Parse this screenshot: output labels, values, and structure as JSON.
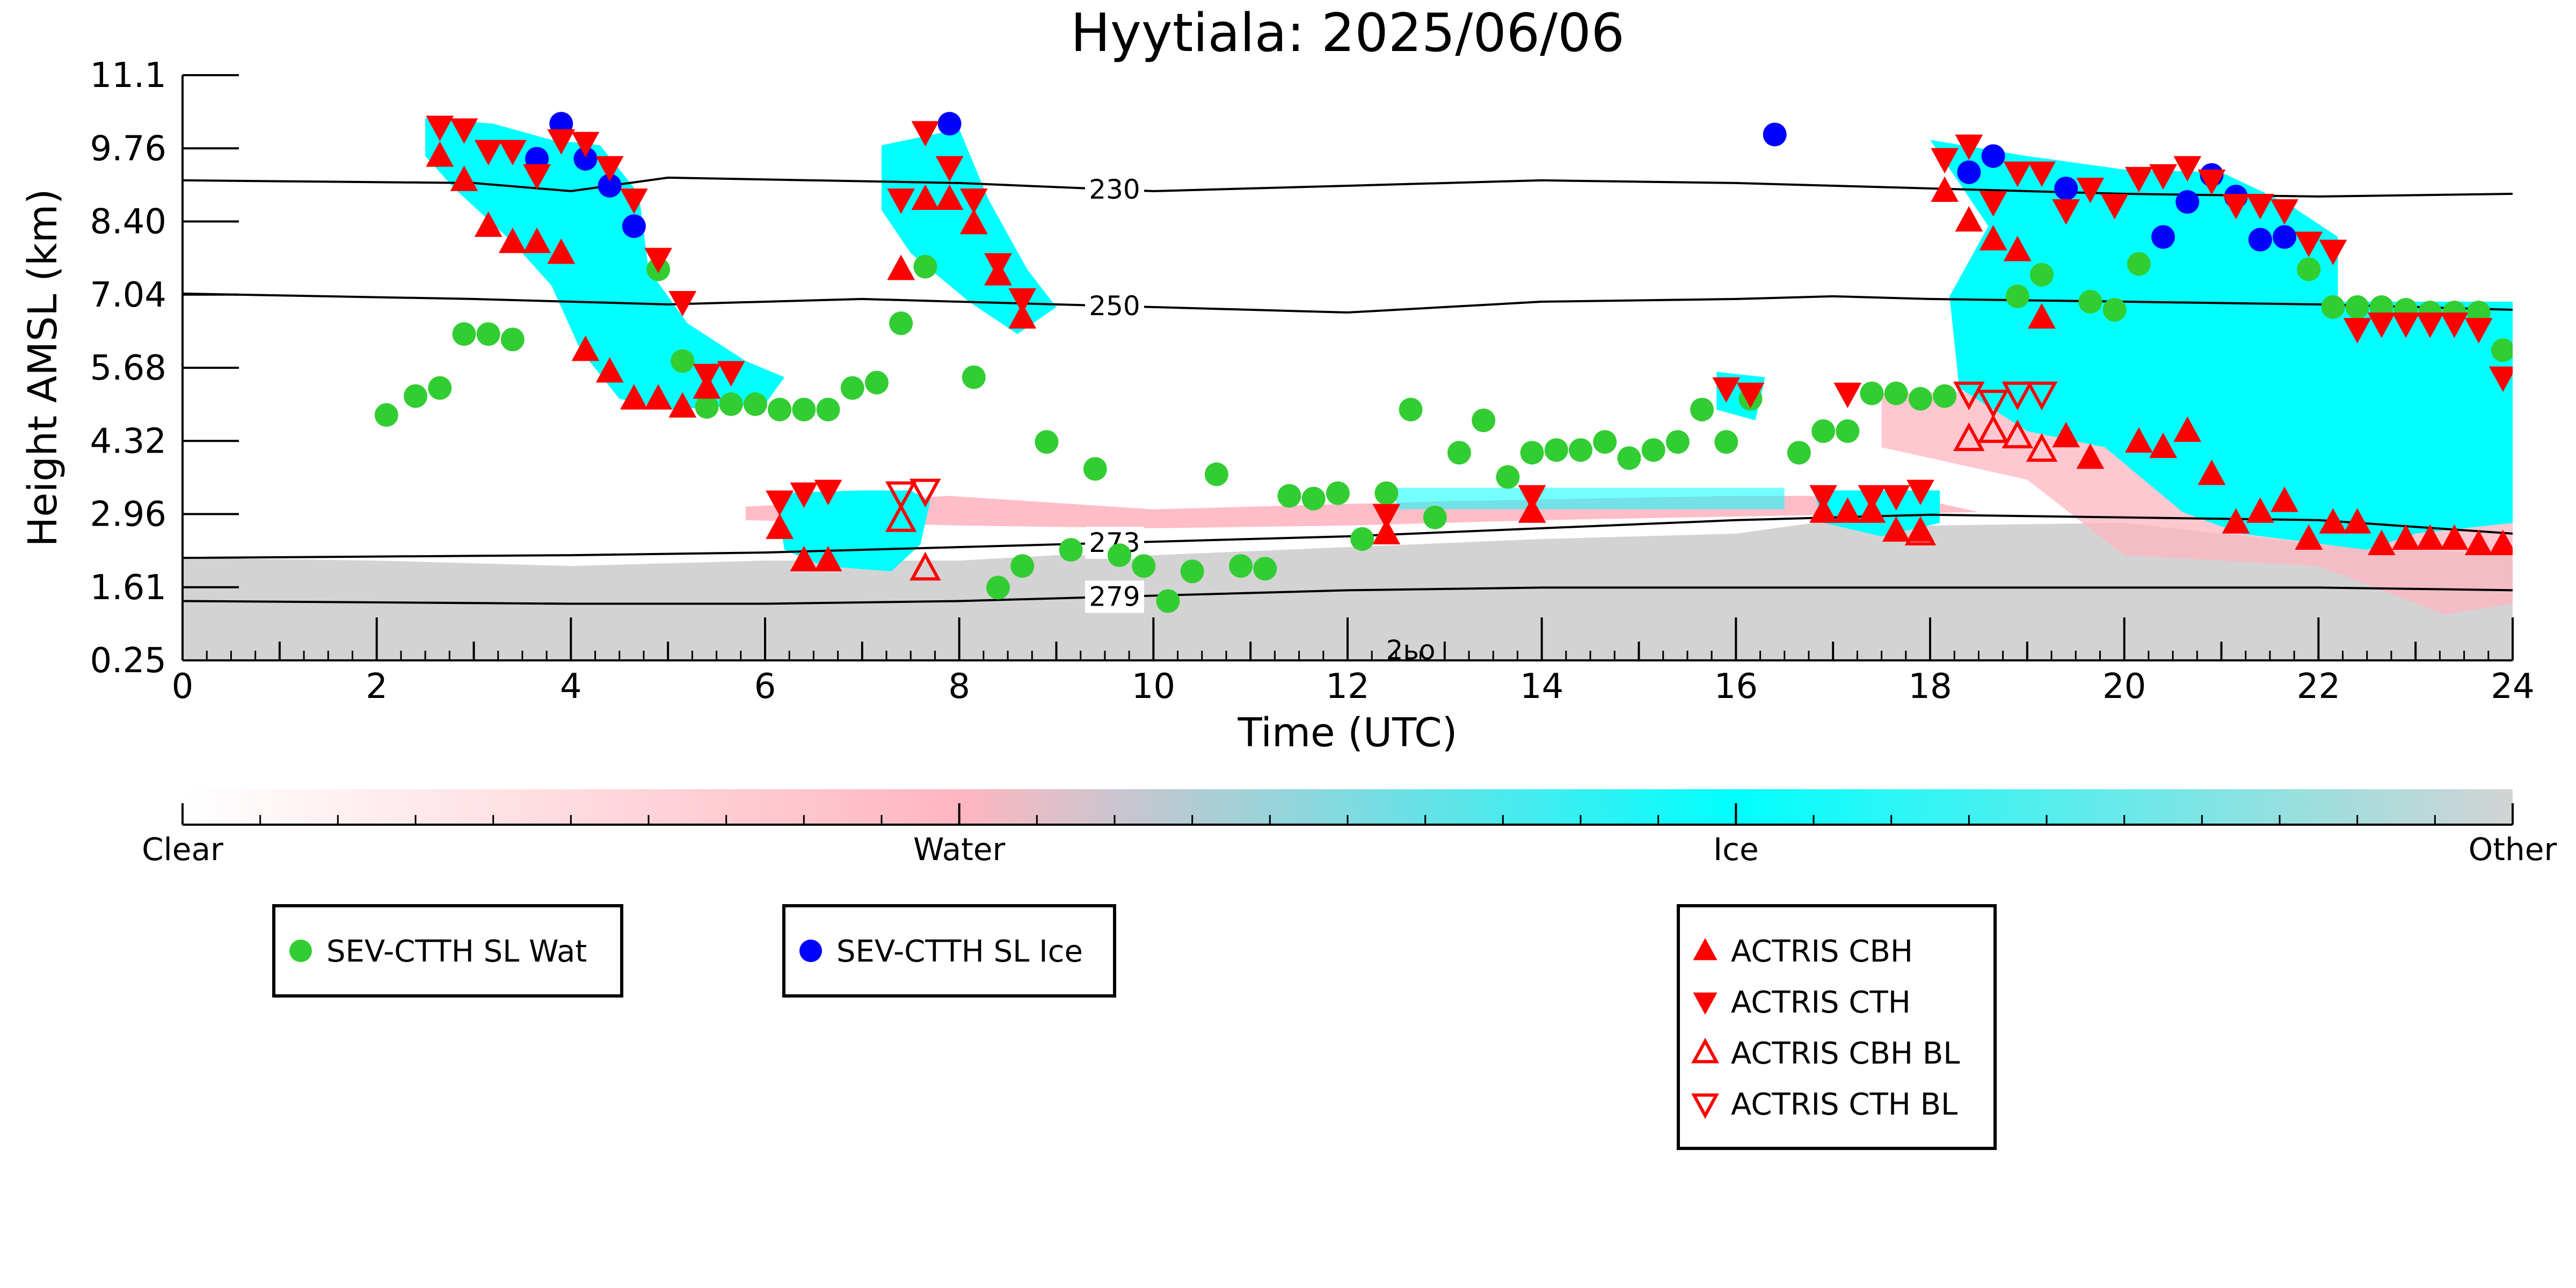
{
  "chart_data": {
    "type": "scatter",
    "title": "Hyytiala: 2025/06/06",
    "xlabel": "Time (UTC)",
    "ylabel": "Height AMSL (km)",
    "xlim": [
      0,
      24
    ],
    "ylim": [
      0.25,
      11.1
    ],
    "x_ticks": [
      "0",
      "2",
      "4",
      "6",
      "8",
      "10",
      "12",
      "14",
      "16",
      "18",
      "20",
      "22",
      "24"
    ],
    "y_ticks": [
      "0.25",
      "1.61",
      "2.96",
      "4.32",
      "5.68",
      "7.04",
      "8.40",
      "9.76",
      "11.1"
    ],
    "colorbar": {
      "labels": [
        "Clear",
        "Water",
        "Ice",
        "Other"
      ],
      "colors": [
        "#ffffff",
        "#ffb6c1",
        "#00ffff",
        "#d3d3d3"
      ]
    },
    "contours": [
      {
        "label": "230",
        "label_x": 9.6,
        "x": [
          0,
          3,
          4,
          5,
          8,
          10,
          12,
          14,
          16,
          18,
          20,
          22,
          24
        ],
        "y": [
          9.15,
          9.1,
          8.95,
          9.2,
          9.1,
          8.95,
          9.05,
          9.15,
          9.1,
          9.0,
          8.9,
          8.85,
          8.9
        ]
      },
      {
        "label": "250",
        "label_x": 9.6,
        "x": [
          0,
          3,
          5,
          7,
          8,
          10,
          12,
          14,
          16,
          17,
          18,
          20,
          22,
          24
        ],
        "y": [
          7.05,
          6.95,
          6.85,
          6.95,
          6.9,
          6.8,
          6.7,
          6.9,
          6.95,
          7.0,
          6.95,
          6.9,
          6.85,
          6.75
        ]
      },
      {
        "label": "273",
        "label_x": 9.6,
        "x": [
          0,
          4,
          6,
          8,
          10,
          12,
          14,
          16,
          17,
          18,
          20,
          22,
          24
        ],
        "y": [
          2.15,
          2.2,
          2.25,
          2.35,
          2.45,
          2.55,
          2.7,
          2.85,
          2.9,
          2.95,
          2.9,
          2.85,
          2.6
        ]
      },
      {
        "label": "279",
        "label_x": 9.6,
        "x": [
          0,
          4,
          6,
          8,
          10,
          12,
          14,
          16,
          18,
          20,
          22,
          24
        ],
        "y": [
          1.35,
          1.3,
          1.3,
          1.35,
          1.45,
          1.55,
          1.6,
          1.6,
          1.6,
          1.6,
          1.6,
          1.55
        ]
      }
    ],
    "contour_partial_label": "2ьо",
    "series": [
      {
        "name": "SEV-CTTH SL Wat",
        "marker": "circle",
        "color": "#32cd32",
        "x": [
          2.1,
          2.4,
          2.65,
          2.9,
          3.15,
          3.4,
          4.9,
          5.15,
          5.4,
          5.65,
          5.9,
          6.15,
          6.4,
          6.65,
          6.9,
          7.15,
          7.4,
          7.65,
          8.15,
          8.4,
          8.65,
          8.9,
          9.15,
          9.4,
          9.65,
          9.9,
          10.15,
          10.4,
          10.65,
          10.9,
          11.15,
          11.4,
          11.65,
          11.9,
          12.15,
          12.4,
          12.65,
          12.9,
          13.15,
          13.4,
          13.65,
          13.9,
          14.15,
          14.4,
          14.65,
          14.9,
          15.15,
          15.4,
          15.65,
          15.9,
          16.15,
          16.65,
          16.9,
          17.15,
          17.4,
          17.65,
          17.9,
          18.15,
          18.9,
          19.15,
          19.65,
          19.9,
          20.15,
          21.9,
          22.15,
          22.4,
          22.65,
          22.9,
          23.15,
          23.4,
          23.65,
          23.9
        ],
        "y": [
          4.8,
          5.15,
          5.3,
          6.3,
          6.3,
          6.2,
          7.5,
          5.8,
          4.95,
          5.0,
          5.0,
          4.9,
          4.9,
          4.9,
          5.3,
          5.4,
          6.5,
          7.55,
          5.5,
          1.6,
          2.0,
          4.3,
          2.3,
          3.8,
          2.2,
          2.0,
          1.35,
          1.9,
          3.7,
          2.0,
          1.95,
          3.3,
          3.25,
          3.35,
          2.5,
          3.35,
          4.9,
          2.9,
          4.1,
          4.7,
          3.65,
          4.1,
          4.15,
          4.15,
          4.3,
          4.0,
          4.15,
          4.3,
          4.9,
          4.3,
          5.1,
          4.1,
          4.5,
          4.5,
          5.2,
          5.2,
          5.1,
          5.15,
          7.0,
          7.4,
          6.9,
          6.75,
          7.6,
          7.5,
          6.8,
          6.8,
          6.8,
          6.75,
          6.7,
          6.7,
          6.7,
          6.0
        ]
      },
      {
        "name": "SEV-CTTH SL Ice",
        "marker": "circle",
        "color": "#0000ff",
        "x": [
          3.65,
          3.9,
          4.15,
          4.4,
          4.65,
          7.9,
          16.4,
          18.4,
          18.65,
          19.4,
          20.4,
          20.65,
          20.9,
          21.15,
          21.4,
          21.65
        ],
        "y": [
          9.55,
          10.2,
          9.55,
          9.05,
          8.3,
          10.2,
          10.0,
          9.3,
          9.6,
          9.0,
          8.1,
          8.75,
          9.25,
          8.85,
          8.05,
          8.1
        ]
      },
      {
        "name": "ACTRIS CBH",
        "marker": "triangle-up",
        "color": "#ff0000",
        "x": [
          2.65,
          2.9,
          3.15,
          3.4,
          3.65,
          3.9,
          4.15,
          4.4,
          4.65,
          4.9,
          5.15,
          5.4,
          6.15,
          6.4,
          6.65,
          7.4,
          7.65,
          7.9,
          8.15,
          8.4,
          8.65,
          12.4,
          13.9,
          16.9,
          17.15,
          17.4,
          17.65,
          17.9,
          18.15,
          18.4,
          18.65,
          18.9,
          19.15,
          19.4,
          19.65,
          20.15,
          20.4,
          20.65,
          20.9,
          21.15,
          21.4,
          21.65,
          21.9,
          22.15,
          22.4,
          22.65,
          22.9,
          23.15,
          23.4,
          23.65,
          23.9
        ],
        "y": [
          9.6,
          9.15,
          8.3,
          8.0,
          8.0,
          7.8,
          6.0,
          5.6,
          5.1,
          5.1,
          4.95,
          5.3,
          2.7,
          2.1,
          2.1,
          7.5,
          8.8,
          8.8,
          8.35,
          7.4,
          6.6,
          2.6,
          3.0,
          3.0,
          3.0,
          3.0,
          2.65,
          2.65,
          8.95,
          8.4,
          8.05,
          7.85,
          6.6,
          4.4,
          4.0,
          4.3,
          4.2,
          4.5,
          3.7,
          2.8,
          3.0,
          3.2,
          2.5,
          2.8,
          2.8,
          2.4,
          2.5,
          2.5,
          2.5,
          2.4,
          2.4
        ]
      },
      {
        "name": "ACTRIS CTH",
        "marker": "triangle-down",
        "color": "#ff0000",
        "x": [
          2.65,
          2.9,
          3.15,
          3.4,
          3.65,
          3.9,
          4.15,
          4.4,
          4.65,
          4.9,
          5.15,
          5.4,
          5.65,
          6.15,
          6.4,
          6.65,
          7.4,
          7.65,
          7.9,
          8.15,
          8.4,
          8.65,
          12.4,
          13.9,
          15.9,
          16.15,
          16.9,
          17.15,
          17.4,
          17.65,
          17.9,
          18.15,
          18.4,
          18.65,
          18.9,
          19.15,
          19.4,
          19.65,
          19.9,
          20.15,
          20.4,
          20.65,
          20.9,
          21.15,
          21.4,
          21.65,
          21.9,
          22.15,
          22.4,
          22.65,
          22.9,
          23.15,
          23.4,
          23.65,
          23.9
        ],
        "y": [
          10.15,
          10.1,
          9.7,
          9.7,
          9.25,
          9.9,
          9.85,
          9.4,
          8.8,
          7.7,
          6.9,
          5.55,
          5.6,
          3.2,
          3.35,
          3.4,
          8.8,
          10.05,
          9.4,
          8.8,
          7.6,
          6.95,
          2.95,
          3.3,
          5.3,
          5.2,
          3.3,
          5.2,
          3.3,
          3.3,
          3.4,
          9.55,
          9.8,
          8.75,
          9.3,
          9.3,
          8.6,
          9.0,
          8.7,
          9.2,
          9.25,
          9.4,
          9.15,
          8.7,
          8.7,
          8.6,
          8.0,
          7.85,
          6.4,
          6.5,
          6.5,
          6.5,
          6.5,
          6.4,
          5.5
        ]
      },
      {
        "name": "ACTRIS CBH BL",
        "marker": "triangle-up-open",
        "color": "#ff0000",
        "x": [
          7.4,
          7.65,
          17.9,
          18.4,
          18.65,
          18.9,
          19.15
        ],
        "y": [
          2.85,
          1.95,
          2.6,
          4.35,
          4.5,
          4.4,
          4.15
        ]
      },
      {
        "name": "ACTRIS CTH BL",
        "marker": "triangle-down-open",
        "color": "#ff0000",
        "x": [
          7.4,
          7.65,
          18.4,
          18.65,
          18.9,
          19.15
        ],
        "y": [
          3.35,
          3.4,
          5.2,
          5.05,
          5.2,
          5.2
        ]
      }
    ],
    "legend_boxes": [
      [
        "SEV-CTTH SL Wat"
      ],
      [
        "SEV-CTTH SL Ice"
      ],
      [
        "ACTRIS CBH",
        "ACTRIS CTH",
        "ACTRIS CBH BL",
        "ACTRIS CTH BL"
      ]
    ]
  }
}
